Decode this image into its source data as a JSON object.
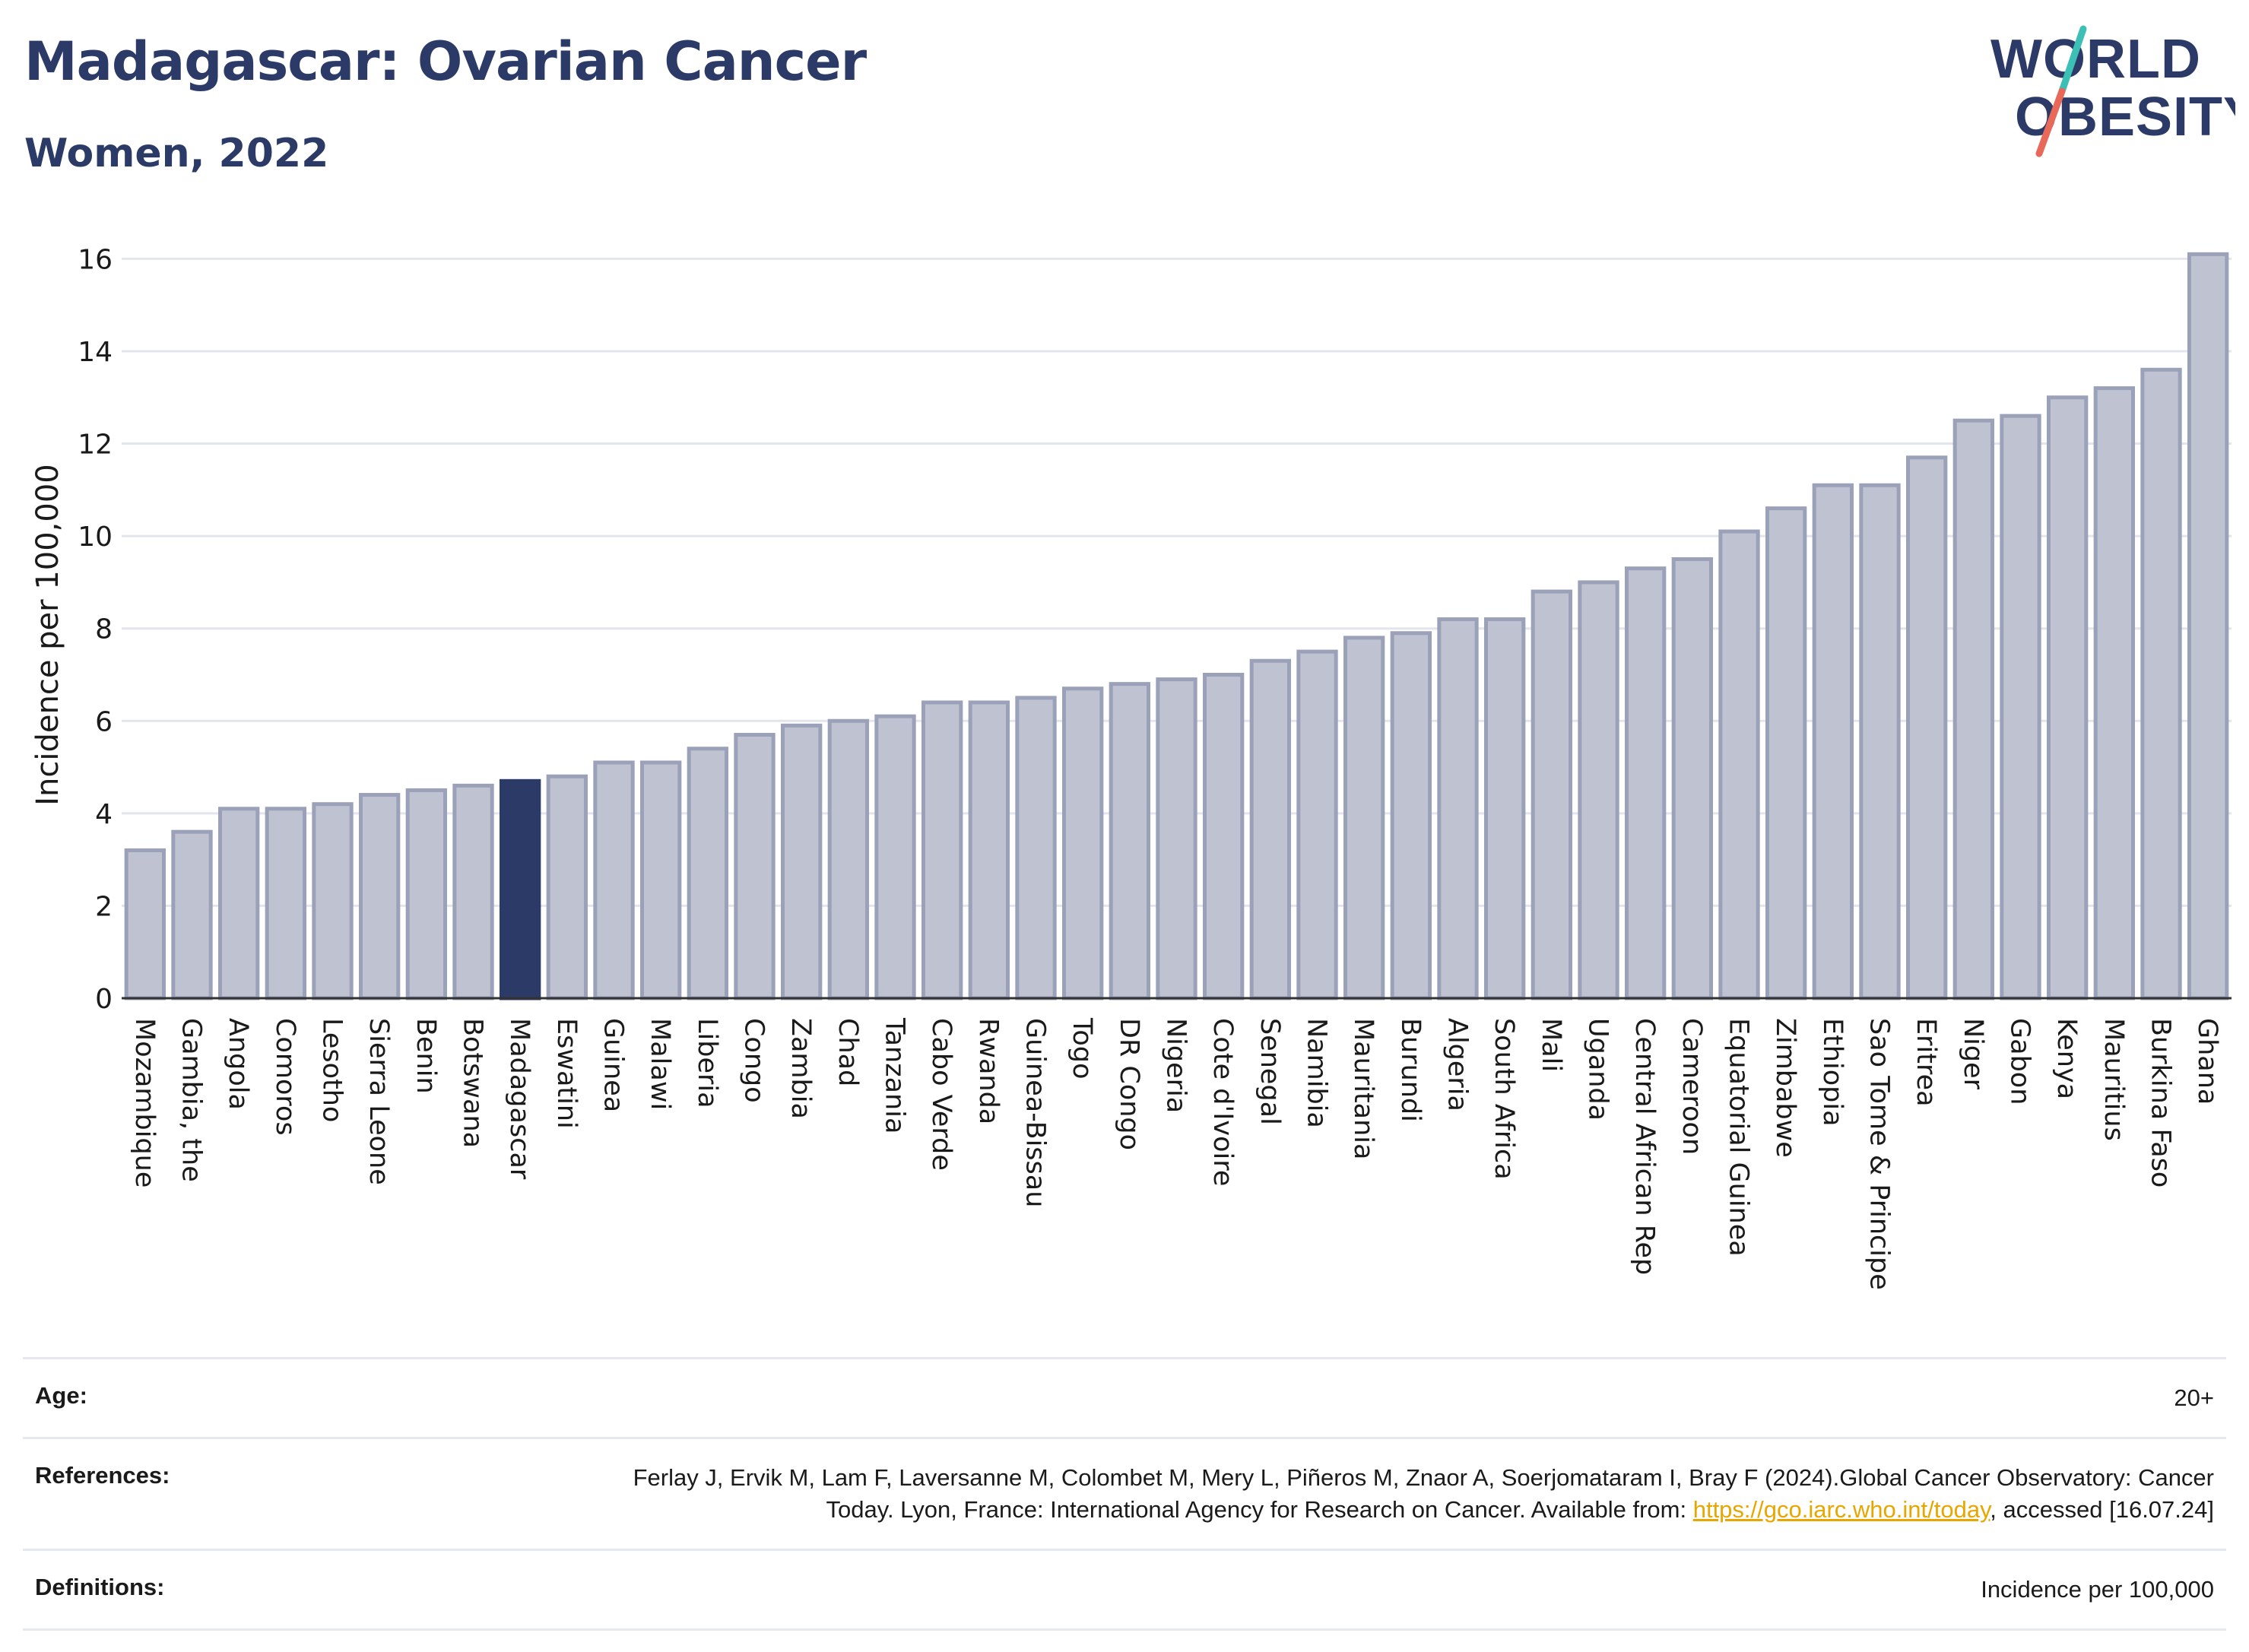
{
  "header": {
    "title": "Madagascar: Ovarian Cancer",
    "subtitle": "Women, 2022"
  },
  "logo": {
    "line1": "WORLD",
    "line2": "OBESITY",
    "text_color": "#2b3a66",
    "slash_color_top": "#3cbfb4",
    "slash_color_bottom": "#e8685a"
  },
  "colors": {
    "bar_fill": "#bfc3d1",
    "bar_stroke": "#9aa1b8",
    "highlight_fill": "#2b3a66",
    "grid": "#e3e5ec",
    "axis": "#333333",
    "title": "#2b3a66"
  },
  "chart_data": {
    "type": "bar",
    "title": "Madagascar: Ovarian Cancer",
    "subtitle": "Women, 2022",
    "xlabel": "",
    "ylabel": "Incidence per 100,000",
    "ylim": [
      0,
      16.5
    ],
    "yticks": [
      0,
      2,
      4,
      6,
      8,
      10,
      12,
      14,
      16
    ],
    "grid": true,
    "highlight": "Madagascar",
    "categories": [
      "Mozambique",
      "Gambia, the",
      "Angola",
      "Comoros",
      "Lesotho",
      "Sierra Leone",
      "Benin",
      "Botswana",
      "Madagascar",
      "Eswatini",
      "Guinea",
      "Malawi",
      "Liberia",
      "Congo",
      "Zambia",
      "Chad",
      "Tanzania",
      "Cabo Verde",
      "Rwanda",
      "Guinea-Bissau",
      "Togo",
      "DR Congo",
      "Nigeria",
      "Cote d'Ivoire",
      "Senegal",
      "Namibia",
      "Mauritania",
      "Burundi",
      "Algeria",
      "South Africa",
      "Mali",
      "Uganda",
      "Central African Rep",
      "Cameroon",
      "Equatorial Guinea",
      "Zimbabwe",
      "Ethiopia",
      "Sao Tome & Principe",
      "Eritrea",
      "Niger",
      "Gabon",
      "Kenya",
      "Mauritius",
      "Burkina Faso",
      "Ghana"
    ],
    "values": [
      3.2,
      3.6,
      4.1,
      4.1,
      4.2,
      4.4,
      4.5,
      4.6,
      4.7,
      4.8,
      5.1,
      5.1,
      5.4,
      5.7,
      5.9,
      6.0,
      6.1,
      6.4,
      6.4,
      6.5,
      6.7,
      6.8,
      6.9,
      7.0,
      7.3,
      7.5,
      7.8,
      7.9,
      8.2,
      8.2,
      8.8,
      9.0,
      9.3,
      9.5,
      10.1,
      10.6,
      11.1,
      11.1,
      11.7,
      12.5,
      12.6,
      13.0,
      13.2,
      13.6,
      16.1
    ]
  },
  "footer": {
    "age_label": "Age:",
    "age_value": "20+",
    "references_label": "References:",
    "references_text": "Ferlay J, Ervik M, Lam F, Laversanne M, Colombet M, Mery L, Piñeros M, Znaor A, Soerjomataram I, Bray F (2024).Global Cancer Observatory: Cancer Today. Lyon, France: International Agency for Research on Cancer. Available from: ",
    "references_link": "https://gco.iarc.who.int/today",
    "references_tail": ", accessed [16.07.24]",
    "definitions_label": "Definitions:",
    "definitions_value": "Incidence per 100,000"
  }
}
